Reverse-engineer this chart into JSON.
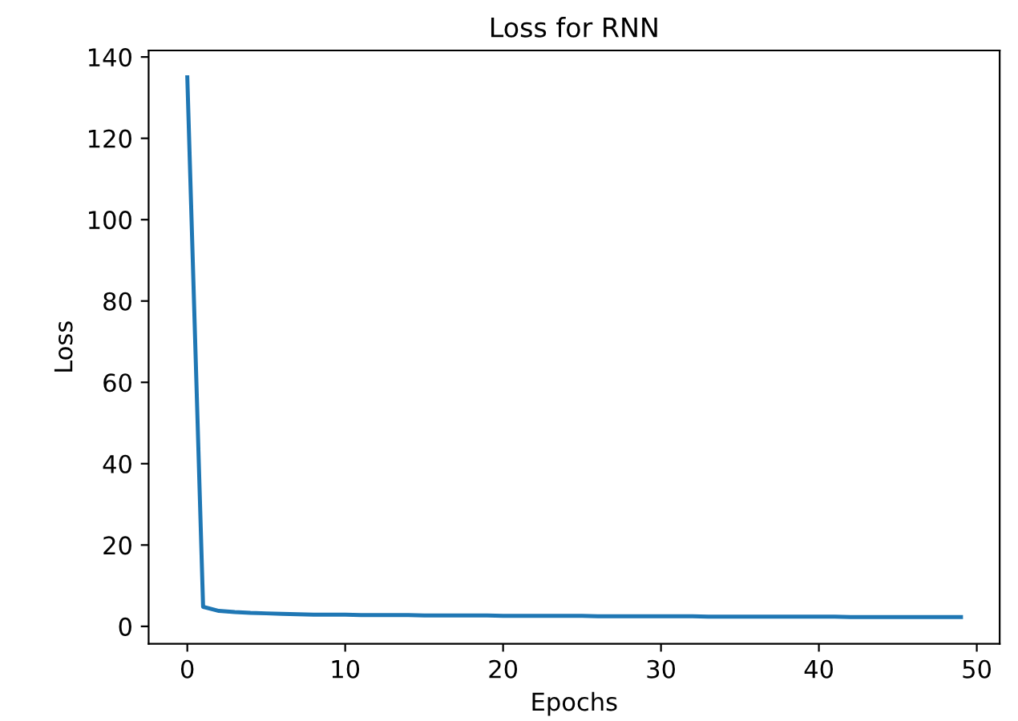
{
  "chart_data": {
    "type": "line",
    "title": "Loss for RNN",
    "xlabel": "Epochs",
    "ylabel": "Loss",
    "x": [
      0,
      1,
      2,
      3,
      4,
      5,
      6,
      7,
      8,
      9,
      10,
      11,
      12,
      13,
      14,
      15,
      16,
      17,
      18,
      19,
      20,
      21,
      22,
      23,
      24,
      25,
      26,
      27,
      28,
      29,
      30,
      31,
      32,
      33,
      34,
      35,
      36,
      37,
      38,
      39,
      40,
      41,
      42,
      43,
      44,
      45,
      46,
      47,
      48,
      49
    ],
    "series": [
      {
        "color": "#1f77b4",
        "values": [
          135,
          4.8,
          3.8,
          3.5,
          3.3,
          3.2,
          3.1,
          3.0,
          2.9,
          2.9,
          2.9,
          2.8,
          2.8,
          2.8,
          2.8,
          2.7,
          2.7,
          2.7,
          2.7,
          2.7,
          2.6,
          2.6,
          2.6,
          2.6,
          2.6,
          2.6,
          2.5,
          2.5,
          2.5,
          2.5,
          2.5,
          2.5,
          2.5,
          2.4,
          2.4,
          2.4,
          2.4,
          2.4,
          2.4,
          2.4,
          2.4,
          2.4,
          2.3,
          2.3,
          2.3,
          2.3,
          2.3,
          2.3,
          2.3,
          2.3
        ]
      }
    ],
    "xlim": [
      -2.45,
      51.45
    ],
    "ylim": [
      -4.3,
      141.6
    ],
    "xticks": [
      0,
      10,
      20,
      30,
      40,
      50
    ],
    "yticks": [
      0,
      20,
      40,
      60,
      80,
      100,
      120,
      140
    ],
    "grid": false,
    "marker": "none",
    "line_style": "solid"
  }
}
